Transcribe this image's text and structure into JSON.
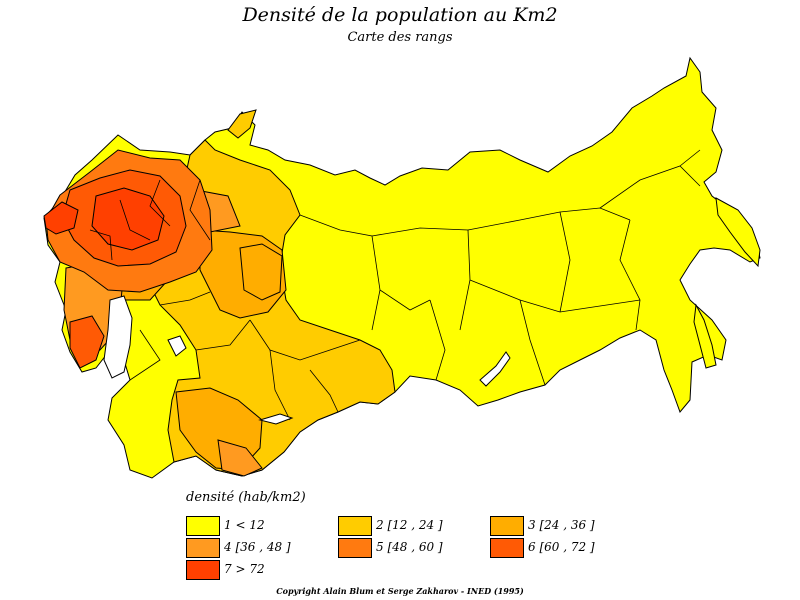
{
  "title": "Densité de la population au Km2",
  "subtitle": "Carte des rangs",
  "legend": {
    "title": "densité (hab/km2)",
    "items": [
      {
        "label": "1  <  12",
        "color": "#ffff00"
      },
      {
        "label": "2  [12 ,  24 ]",
        "color": "#ffcc00"
      },
      {
        "label": "3  [24 ,  36 ]",
        "color": "#ffad00"
      },
      {
        "label": "4  [36 ,  48 ]",
        "color": "#ff9a20"
      },
      {
        "label": "5  [48 ,  60 ]",
        "color": "#ff7a10"
      },
      {
        "label": "6  [60 ,  72 ]",
        "color": "#ff5a05"
      },
      {
        "label": "7  >  72",
        "color": "#ff4000"
      }
    ]
  },
  "copyright": "Copyright Alain Blum et Serge Zakharov  -  INED (1995)"
}
